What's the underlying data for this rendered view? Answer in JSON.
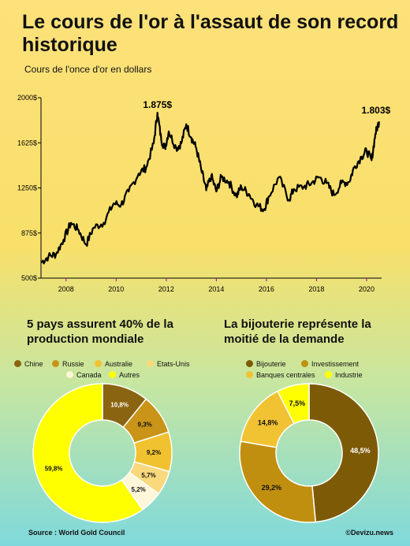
{
  "title": "Le cours de l'or à l'assaut de son record historique",
  "subtitle": "Cours de l'once d'or en dollars",
  "line_chart": {
    "ytick_labels": [
      "2000$",
      "1625$",
      "1250$",
      "875$",
      "500$"
    ],
    "xtick_labels": [
      "2008",
      "2010",
      "2012",
      "2014",
      "2016",
      "2018",
      "2020"
    ],
    "peak_label": "1.875$",
    "last_label": "1.803$"
  },
  "production": {
    "heading": "5 pays assurent 40% de la production mondiale",
    "legend": [
      "Chine",
      "Russie",
      "Australie",
      "Etats-Unis",
      "Canada",
      "Autres"
    ],
    "value_labels": [
      "10,8%",
      "9,3%",
      "9,2%",
      "5,7%",
      "5,2%",
      "59,8%"
    ]
  },
  "demand": {
    "heading": "La bijouterie représente la moitié de la demande",
    "legend": [
      "Bijouterie",
      "Investissement",
      "Banques centrales",
      "Industrie"
    ],
    "value_labels": [
      "48,5%",
      "29,2%",
      "14,8%",
      "7,5%"
    ]
  },
  "footer": {
    "source": "Source : World Gold Council",
    "brand": "©Devizu.news"
  },
  "chart_data": [
    {
      "type": "line",
      "series": [
        {
          "values": [
            [
              2007.0,
              630
            ],
            [
              2007.3,
              680
            ],
            [
              2007.6,
              700
            ],
            [
              2007.9,
              820
            ],
            [
              2008.2,
              960
            ],
            [
              2008.5,
              900
            ],
            [
              2008.8,
              780
            ],
            [
              2009.1,
              920
            ],
            [
              2009.5,
              960
            ],
            [
              2009.9,
              1120
            ],
            [
              2010.2,
              1110
            ],
            [
              2010.5,
              1220
            ],
            [
              2010.9,
              1370
            ],
            [
              2011.2,
              1420
            ],
            [
              2011.5,
              1620
            ],
            [
              2011.65,
              1875
            ],
            [
              2011.8,
              1650
            ],
            [
              2011.95,
              1580
            ],
            [
              2012.1,
              1720
            ],
            [
              2012.4,
              1580
            ],
            [
              2012.6,
              1620
            ],
            [
              2012.8,
              1780
            ],
            [
              2013.0,
              1670
            ],
            [
              2013.2,
              1580
            ],
            [
              2013.4,
              1400
            ],
            [
              2013.6,
              1230
            ],
            [
              2013.8,
              1350
            ],
            [
              2014.0,
              1220
            ],
            [
              2014.2,
              1340
            ],
            [
              2014.5,
              1300
            ],
            [
              2014.8,
              1180
            ],
            [
              2015.0,
              1260
            ],
            [
              2015.3,
              1200
            ],
            [
              2015.6,
              1110
            ],
            [
              2015.9,
              1070
            ],
            [
              2016.1,
              1180
            ],
            [
              2016.5,
              1340
            ],
            [
              2016.9,
              1150
            ],
            [
              2017.1,
              1240
            ],
            [
              2017.5,
              1260
            ],
            [
              2017.8,
              1290
            ],
            [
              2018.1,
              1340
            ],
            [
              2018.4,
              1290
            ],
            [
              2018.7,
              1190
            ],
            [
              2019.0,
              1290
            ],
            [
              2019.3,
              1300
            ],
            [
              2019.5,
              1420
            ],
            [
              2019.8,
              1510
            ],
            [
              2020.0,
              1560
            ],
            [
              2020.2,
              1480
            ],
            [
              2020.35,
              1700
            ],
            [
              2020.5,
              1803
            ]
          ]
        }
      ],
      "xlim": [
        2007,
        2020.6
      ],
      "ylim": [
        500,
        2000
      ],
      "ticks_x": [
        2008,
        2010,
        2012,
        2014,
        2016,
        2018,
        2020
      ],
      "ticks_y": [
        500,
        875,
        1250,
        1625,
        2000
      ],
      "annotations": [
        {
          "x": 2011.65,
          "y": 1875,
          "text": "1.875$"
        },
        {
          "x": 2020.5,
          "y": 1803,
          "text": "1.803$"
        }
      ],
      "line_color": "#000000"
    },
    {
      "type": "pie",
      "title": "5 pays assurent 40% de la production mondiale",
      "categories": [
        "Chine",
        "Russie",
        "Australie",
        "Etats-Unis",
        "Canada",
        "Autres"
      ],
      "values": [
        10.8,
        9.3,
        9.2,
        5.7,
        5.2,
        59.8
      ],
      "colors": [
        "#8a6410",
        "#c99418",
        "#f1c230",
        "#fad87c",
        "#fdf6d8",
        "#ffff00"
      ],
      "donut": true
    },
    {
      "type": "pie",
      "title": "La bijouterie représente la moitié de la demande",
      "categories": [
        "Bijouterie",
        "Investissement",
        "Banques centrales",
        "Industrie"
      ],
      "values": [
        48.5,
        29.2,
        14.8,
        7.5
      ],
      "colors": [
        "#7d5a06",
        "#c18f0f",
        "#f1c232",
        "#ffff00"
      ],
      "donut": true
    }
  ]
}
